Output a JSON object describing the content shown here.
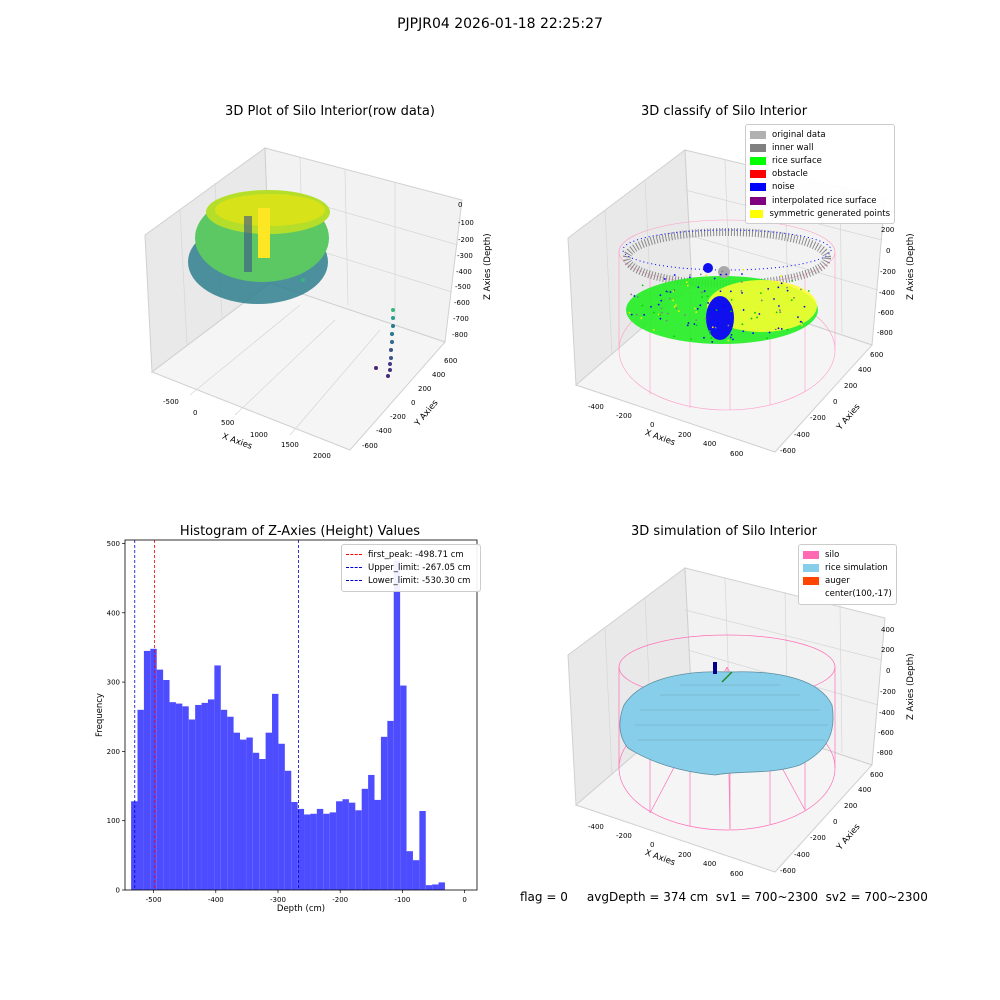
{
  "figure": {
    "suptitle": "PJPJR04 2026-01-18 22:25:27",
    "footer": "flag = 0     avgDepth = 374 cm  sv1 = 700~2300  sv2 = 700~2300"
  },
  "colors": {
    "silo": "#ff69b4",
    "rice_simulation": "#87ceeb",
    "auger": "#ff4500",
    "original_data": "#b0b0b0",
    "inner_wall": "#808080",
    "rice_surface": "#00ff00",
    "obstacle": "#ff0000",
    "noise": "#0000ff",
    "interpolated": "#800080",
    "symmetric": "#ffff00",
    "hist_bar": "#4d4dff"
  },
  "panel1": {
    "title": "3D Plot of Silo Interior(row data)",
    "xlabel": "X Axies",
    "ylabel": "Y Axies",
    "zlabel": "Z Axies (Depth)",
    "xticks": [
      "-500",
      "0",
      "500",
      "1000",
      "1500",
      "2000"
    ],
    "yticks": [
      "-600",
      "-400",
      "-200",
      "0",
      "200",
      "400",
      "600"
    ],
    "zticks": [
      "0",
      "-100",
      "-200",
      "-300",
      "-400",
      "-500",
      "-600",
      "-700",
      "-800"
    ]
  },
  "panel2": {
    "title": "3D classify of Silo Interior",
    "xlabel": "X Axies",
    "ylabel": "Y Axies",
    "zlabel": "Z Axies (Depth)",
    "xticks": [
      "-400",
      "-200",
      "0",
      "200",
      "400",
      "600"
    ],
    "yticks": [
      "-600",
      "-400",
      "-200",
      "0",
      "200",
      "400",
      "600"
    ],
    "zticks": [
      "200",
      "0",
      "-200",
      "-400",
      "-600",
      "-800"
    ],
    "legend": [
      {
        "label": "original data",
        "color": "#b0b0b0"
      },
      {
        "label": "inner wall",
        "color": "#808080"
      },
      {
        "label": "rice surface",
        "color": "#00ff00"
      },
      {
        "label": "obstacle",
        "color": "#ff0000"
      },
      {
        "label": "noise",
        "color": "#0000ff"
      },
      {
        "label": "interpolated rice surface",
        "color": "#800080"
      },
      {
        "label": "symmetric generated points",
        "color": "#ffff00"
      }
    ]
  },
  "panel4": {
    "title": "3D simulation of Silo Interior",
    "xlabel": "X Axies",
    "ylabel": "Y Axies",
    "zlabel": "Z Axies (Depth)",
    "xticks": [
      "-400",
      "-200",
      "0",
      "200",
      "400",
      "600"
    ],
    "yticks": [
      "-600",
      "-400",
      "-200",
      "0",
      "200",
      "400",
      "600"
    ],
    "zticks": [
      "400",
      "200",
      "0",
      "-200",
      "-400",
      "-600",
      "-800"
    ],
    "legend": [
      {
        "label": "silo",
        "color": "#ff69b4"
      },
      {
        "label": "rice simulation",
        "color": "#87ceeb"
      },
      {
        "label": "auger",
        "color": "#ff4500"
      },
      {
        "label": "center(100,-17)",
        "color": ""
      }
    ]
  },
  "chart_data": [
    {
      "type": "bar",
      "title": "Histogram of Z-Axies (Height) Values",
      "xlabel": "Depth (cm)",
      "ylabel": "Frequency",
      "xlim": [
        -546,
        20
      ],
      "ylim": [
        0,
        505
      ],
      "xticks": [
        -500,
        -400,
        -300,
        -200,
        -100,
        0
      ],
      "yticks": [
        0,
        100,
        200,
        300,
        400,
        500
      ],
      "bin_width": 10.3,
      "bin_start": -536.2,
      "values": [
        128,
        260,
        345,
        348,
        318,
        303,
        271,
        269,
        265,
        246,
        267,
        270,
        275,
        324,
        260,
        250,
        227,
        217,
        220,
        198,
        189,
        227,
        283,
        211,
        172,
        127,
        117,
        109,
        110,
        117,
        110,
        112,
        128,
        131,
        126,
        115,
        146,
        166,
        130,
        221,
        244,
        475,
        295,
        56,
        43,
        114,
        7,
        8,
        11
      ],
      "vlines": [
        {
          "x": -498.71,
          "color": "#ff0000",
          "label": "first_peak: -498.71 cm"
        },
        {
          "x": -267.05,
          "color": "#0000cc",
          "label": "Upper_limit: -267.05 cm"
        },
        {
          "x": -530.3,
          "color": "#0000cc",
          "label": "Lower_limit: -530.30 cm"
        }
      ],
      "legend_position": "upper right"
    }
  ]
}
